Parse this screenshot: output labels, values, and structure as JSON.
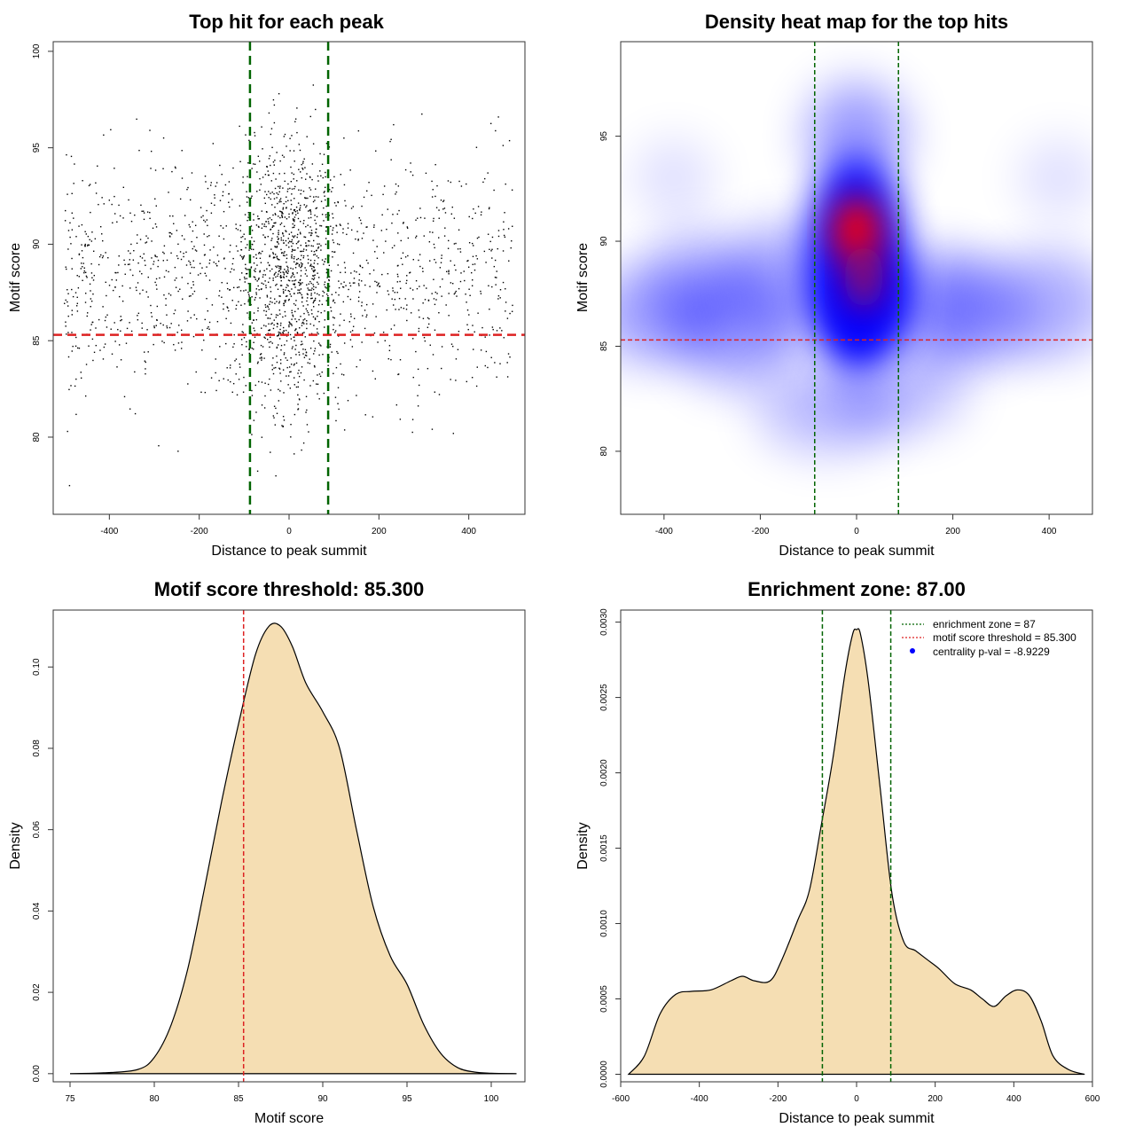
{
  "chart_data": [
    {
      "type": "scatter",
      "title": "Top hit for each peak",
      "xlabel": "Distance to peak summit",
      "ylabel": "Motif score",
      "xlim": [
        -525,
        525
      ],
      "ylim": [
        76,
        100.5
      ],
      "xticks": [
        -400,
        -200,
        0,
        200,
        400
      ],
      "yticks": [
        80,
        85,
        90,
        95,
        100
      ],
      "hlines": [
        {
          "y": 85.3,
          "color": "#dd2222",
          "style": "dashed"
        }
      ],
      "vlines": [
        {
          "x": -87,
          "color": "#006400",
          "style": "dashed"
        },
        {
          "x": 87,
          "color": "#006400",
          "style": "dashed"
        }
      ],
      "points": {
        "n": 2200,
        "x_range": [
          -500,
          500
        ],
        "y_range": [
          77,
          99.6
        ],
        "central_fraction": 0.42,
        "central_x_sd": 55,
        "score_mean": 88.4,
        "score_sd": 3.3,
        "marker_color": "#000000"
      },
      "grid": false
    },
    {
      "type": "heatmap",
      "title": "Density heat map for the top hits",
      "xlabel": "Distance to peak summit",
      "ylabel": "Motif score",
      "xlim": [
        -490,
        490
      ],
      "ylim": [
        77,
        99.5
      ],
      "xticks": [
        -400,
        -200,
        0,
        200,
        400
      ],
      "yticks": [
        80,
        85,
        90,
        95
      ],
      "hlines": [
        {
          "y": 85.3,
          "color": "#dd2222",
          "style": "dashed"
        }
      ],
      "vlines": [
        {
          "x": -87,
          "color": "#006400",
          "style": "dashed"
        },
        {
          "x": 87,
          "color": "#006400",
          "style": "dashed"
        }
      ],
      "colors": [
        "#ffffff",
        "#0000ff",
        "#ff0000"
      ],
      "density_peak": {
        "x": 0,
        "y": 90.5
      },
      "grid": false
    },
    {
      "type": "area",
      "title": "Motif score threshold: 85.300",
      "xlabel": "Motif score",
      "ylabel": "Density",
      "xlim": [
        74,
        102
      ],
      "ylim": [
        -0.002,
        0.114
      ],
      "xticks": [
        75,
        80,
        85,
        90,
        95,
        100
      ],
      "yticks": [
        0.0,
        0.02,
        0.04,
        0.06,
        0.08,
        0.1
      ],
      "ytick_labels": [
        "0.00",
        "0.02",
        "0.04",
        "0.06",
        "0.08",
        "0.10"
      ],
      "fill": "#f5deb3",
      "vlines": [
        {
          "x": 85.3,
          "color": "#dd2222",
          "style": "dashed"
        }
      ],
      "x": [
        75,
        77,
        79,
        80,
        81,
        82,
        83,
        84,
        85,
        86,
        86.8,
        87.5,
        88.2,
        89,
        90,
        91,
        92,
        93,
        94,
        95,
        96,
        97,
        98,
        99,
        100,
        101.5
      ],
      "y": [
        0.0,
        0.0002,
        0.001,
        0.004,
        0.012,
        0.026,
        0.046,
        0.067,
        0.086,
        0.103,
        0.11,
        0.11,
        0.105,
        0.096,
        0.089,
        0.08,
        0.06,
        0.041,
        0.029,
        0.022,
        0.012,
        0.005,
        0.0015,
        0.0004,
        0.0001,
        0.0
      ],
      "grid": false
    },
    {
      "type": "area",
      "title": "Enrichment zone: 87.00",
      "xlabel": "Distance to peak summit",
      "ylabel": "Density",
      "xlim": [
        -600,
        600
      ],
      "ylim": [
        -5e-05,
        0.00308
      ],
      "xticks": [
        -600,
        -400,
        -200,
        0,
        200,
        400,
        600
      ],
      "yticks": [
        0.0,
        0.0005,
        0.001,
        0.0015,
        0.002,
        0.0025,
        0.003
      ],
      "ytick_labels": [
        "0.0000",
        "0.0005",
        "0.0010",
        "0.0015",
        "0.0020",
        "0.0025",
        "0.0030"
      ],
      "fill": "#f5deb3",
      "vlines": [
        {
          "x": -87,
          "color": "#006400",
          "style": "dashed"
        },
        {
          "x": 87,
          "color": "#006400",
          "style": "dashed"
        }
      ],
      "x": [
        -580,
        -540,
        -500,
        -460,
        -420,
        -370,
        -320,
        -290,
        -260,
        -220,
        -190,
        -150,
        -120,
        -90,
        -60,
        -30,
        -10,
        0,
        10,
        30,
        60,
        90,
        120,
        150,
        180,
        210,
        250,
        290,
        320,
        350,
        380,
        410,
        440,
        470,
        500,
        540,
        580
      ],
      "y": [
        0.0,
        0.00012,
        0.0004,
        0.00053,
        0.00055,
        0.00056,
        0.00062,
        0.00065,
        0.00062,
        0.00062,
        0.00076,
        0.00102,
        0.00122,
        0.00165,
        0.0021,
        0.00265,
        0.00292,
        0.00295,
        0.00292,
        0.0026,
        0.0019,
        0.0012,
        0.00088,
        0.00082,
        0.00076,
        0.0007,
        0.0006,
        0.00056,
        0.0005,
        0.00045,
        0.00052,
        0.00056,
        0.00052,
        0.00035,
        0.00012,
        3e-05,
        0.0
      ],
      "legend": {
        "position": "top-right",
        "entries": [
          {
            "label": "enrichment zone = 87",
            "color": "#006400",
            "kind": "line"
          },
          {
            "label": "motif score threshold = 85.300",
            "color": "#dd2222",
            "kind": "line"
          },
          {
            "label": "centrality p-val = -8.9229",
            "color": "#0000ff",
            "kind": "point"
          }
        ]
      },
      "grid": false
    }
  ]
}
